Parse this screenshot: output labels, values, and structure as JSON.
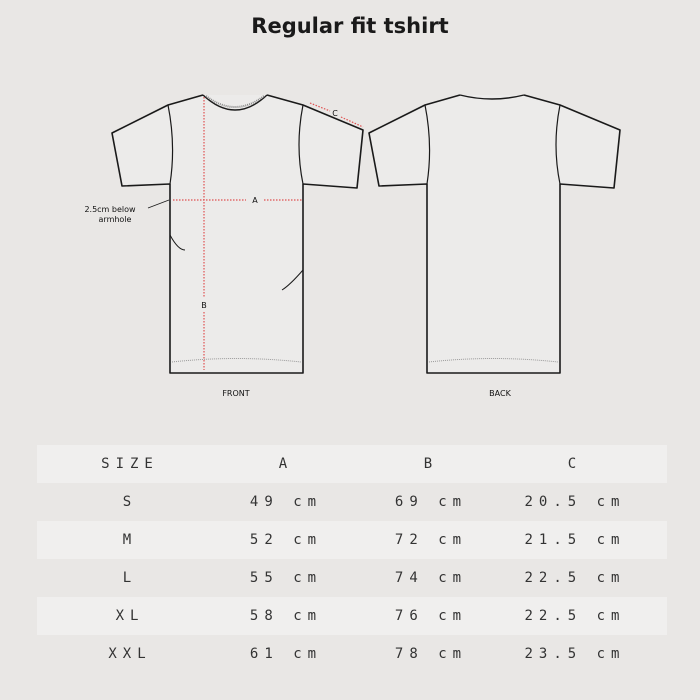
{
  "title": "Regular fit tshirt",
  "diagram": {
    "front_label": "FRONT",
    "back_label": "BACK",
    "measure_a": "A",
    "measure_b": "B",
    "measure_c": "C",
    "note_line1": "2.5cm below",
    "note_line2": "armhole",
    "measure_color": "#e05050"
  },
  "table": {
    "headers": [
      "SIZE",
      "A",
      "B",
      "C"
    ],
    "rows": [
      [
        "S",
        "49 cm",
        "69 cm",
        "20.5 cm"
      ],
      [
        "M",
        "52 cm",
        "72 cm",
        "21.5 cm"
      ],
      [
        "L",
        "55 cm",
        "74 cm",
        "22.5 cm"
      ],
      [
        "XL",
        "58 cm",
        "76 cm",
        "22.5 cm"
      ],
      [
        "XXL",
        "61 cm",
        "78 cm",
        "23.5 cm"
      ]
    ]
  }
}
